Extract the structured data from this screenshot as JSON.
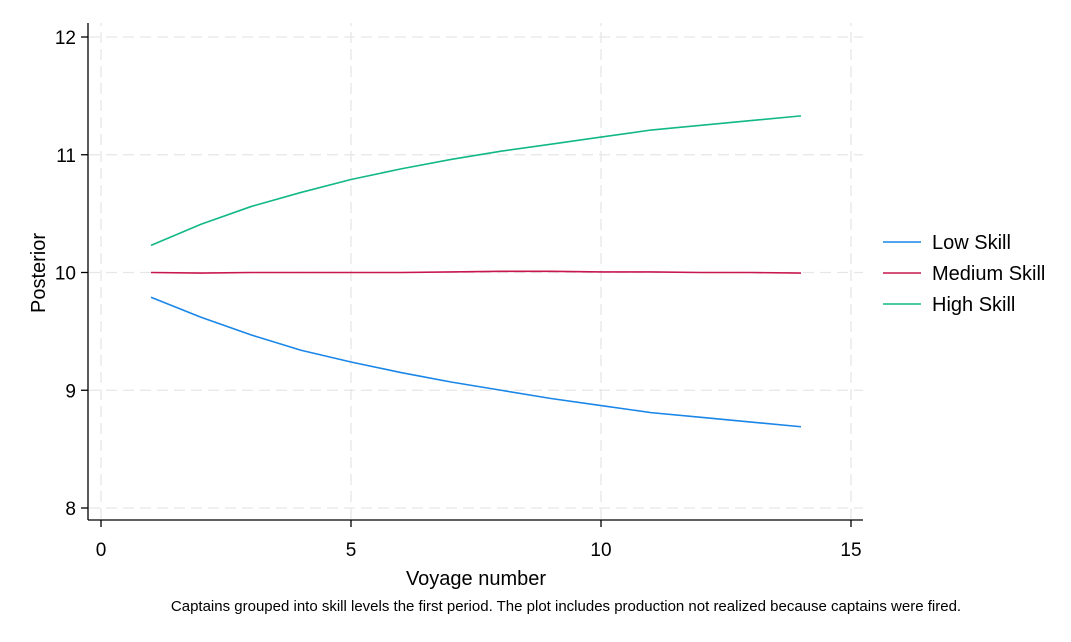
{
  "chart_data": {
    "type": "line",
    "xlabel": "Voyage number",
    "ylabel": "Posterior",
    "xlim": [
      0,
      15
    ],
    "ylim": [
      8,
      12
    ],
    "xticks": [
      0,
      5,
      10,
      15
    ],
    "yticks": [
      8,
      9,
      10,
      11,
      12
    ],
    "grid": true,
    "legend_position": "right",
    "note": "Captains grouped into skill levels the first period. The plot includes production not realized because captains were fired.",
    "x": [
      1,
      2,
      3,
      4,
      5,
      6,
      7,
      8,
      9,
      10,
      11,
      12,
      13,
      14
    ],
    "series": [
      {
        "name": "Low Skill",
        "color": "#1a86e8",
        "values": [
          9.79,
          9.62,
          9.47,
          9.34,
          9.24,
          9.15,
          9.07,
          9.0,
          8.93,
          8.87,
          8.81,
          8.77,
          8.73,
          8.69
        ]
      },
      {
        "name": "Medium Skill",
        "color": "#c8174f",
        "values": [
          10.0,
          9.995,
          10.0,
          10.0,
          10.0,
          10.0,
          10.005,
          10.01,
          10.01,
          10.005,
          10.005,
          10.0,
          10.0,
          9.995
        ]
      },
      {
        "name": "High Skill",
        "color": "#12b886",
        "values": [
          10.23,
          10.41,
          10.56,
          10.68,
          10.79,
          10.88,
          10.96,
          11.03,
          11.09,
          11.15,
          11.21,
          11.25,
          11.29,
          11.33
        ]
      }
    ]
  }
}
